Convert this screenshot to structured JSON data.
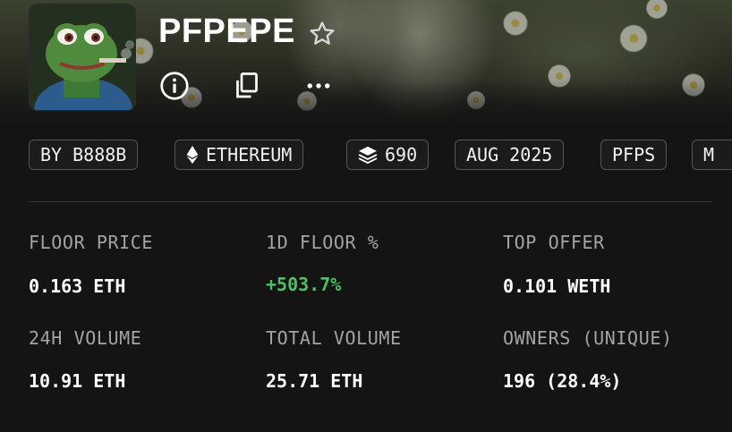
{
  "collection": {
    "name": "PFPEPE",
    "avatar_icon": "pepe-avatar",
    "actions": [
      {
        "icon": "info-icon"
      },
      {
        "icon": "copy-icon"
      },
      {
        "icon": "more-icon"
      }
    ]
  },
  "chips": [
    {
      "label": "BY B888B"
    },
    {
      "label": "ETHEREUM",
      "icon": "ethereum-icon"
    },
    {
      "label": "690",
      "icon": "layers-icon"
    },
    {
      "label": "AUG 2025"
    },
    {
      "label": "PFPS"
    },
    {
      "label": "M"
    }
  ],
  "stats": {
    "floor_price": {
      "label": "FLOOR PRICE",
      "value": "0.163 ETH"
    },
    "floor_change_1d": {
      "label": "1D FLOOR %",
      "value": "+503.7%"
    },
    "top_offer": {
      "label": "TOP OFFER",
      "value": "0.101 WETH"
    },
    "volume_24h": {
      "label": "24H VOLUME",
      "value": "10.91 ETH"
    },
    "total_volume": {
      "label": "TOTAL VOLUME",
      "value": "25.71 ETH"
    },
    "owners": {
      "label": "OWNERS (UNIQUE)",
      "value": "196 (28.4%)"
    }
  },
  "colors": {
    "positive": "#4fbf63",
    "label": "#a4a4a4",
    "background": "#141414"
  }
}
